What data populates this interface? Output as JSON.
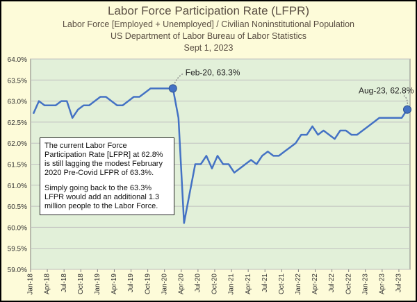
{
  "header": {
    "title": "Labor Force Participation Rate (LFPR)",
    "subtitle1": "Labor Force [Employed + Unemployed] / Civilian Noninstitutional Population",
    "subtitle2": "US Department of Labor Bureau of Labor Statistics",
    "subtitle3": "Sept 1, 2023"
  },
  "note": {
    "p1": "The current Labor Force Participation Rate [LFPR] at 62.8% is still lagging the modest February 2020 Pre-Covid LFPR of 63.3%.",
    "p2": "Simply going back to the 63.3% LFPR would add an additional 1.3 million people to the Labor Force."
  },
  "colors": {
    "line": "#4472c4",
    "plot_bg": "#e2f0d9",
    "panel_bg": "#fdfbd9",
    "text": "#5a4f43"
  },
  "chart_data": {
    "type": "line",
    "title": "Labor Force Participation Rate (LFPR)",
    "ylim": [
      59.0,
      64.0
    ],
    "yticks": [
      "59.0%",
      "59.5%",
      "60.0%",
      "60.5%",
      "61.0%",
      "61.5%",
      "62.0%",
      "62.5%",
      "63.0%",
      "63.5%",
      "64.0%"
    ],
    "xtick_labels": [
      "Jan-18",
      "Apr-18",
      "Jul-18",
      "Oct-18",
      "Jan-19",
      "Apr-19",
      "Jul-19",
      "Oct-19",
      "Jan-20",
      "Apr-20",
      "Jul-20",
      "Oct-20",
      "Jan-21",
      "Apr-21",
      "Jul-21",
      "Oct-21",
      "Jan-22",
      "Apr-22",
      "Jul-22",
      "Oct-22",
      "Jan-23",
      "Apr-23",
      "Jul-23"
    ],
    "start_month": "Jan-18",
    "grid": true,
    "series": [
      {
        "name": "",
        "values": [
          62.7,
          63.0,
          62.9,
          62.9,
          62.9,
          63.0,
          63.0,
          62.6,
          62.8,
          62.9,
          62.9,
          63.0,
          63.1,
          63.1,
          63.0,
          62.9,
          62.9,
          63.0,
          63.1,
          63.1,
          63.2,
          63.3,
          63.3,
          63.3,
          63.3,
          63.3,
          62.6,
          60.1,
          60.8,
          61.5,
          61.5,
          61.7,
          61.4,
          61.7,
          61.5,
          61.5,
          61.3,
          61.4,
          61.5,
          61.6,
          61.5,
          61.7,
          61.8,
          61.7,
          61.7,
          61.8,
          61.9,
          62.0,
          62.2,
          62.2,
          62.4,
          62.2,
          62.3,
          62.2,
          62.1,
          62.3,
          62.3,
          62.2,
          62.2,
          62.3,
          62.4,
          62.5,
          62.6,
          62.6,
          62.6,
          62.6,
          62.6,
          62.8
        ]
      }
    ],
    "annotations": [
      {
        "label": "Feb-20, 63.3%",
        "month": "Feb-20",
        "value": 63.3
      },
      {
        "label": "Aug-23, 62.8%",
        "month": "Aug-23",
        "value": 62.8
      }
    ]
  }
}
